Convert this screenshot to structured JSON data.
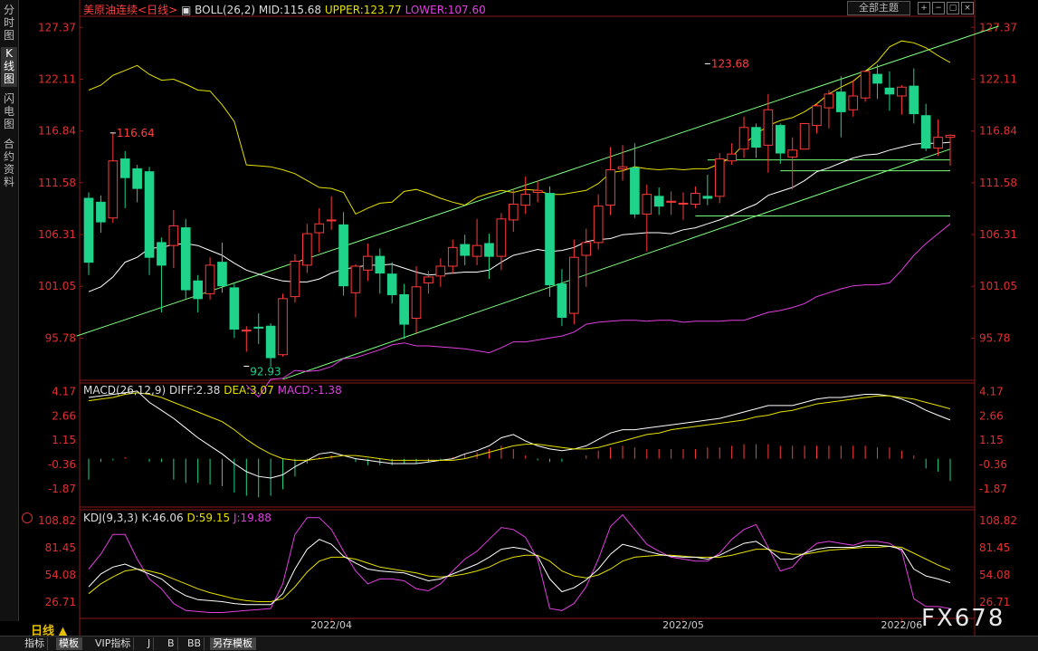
{
  "sidebar": {
    "tabs": [
      {
        "label": "分时图",
        "active": false
      },
      {
        "label": "K线图",
        "active": true
      },
      {
        "label": "闪电图",
        "active": false
      },
      {
        "label": "合约资料",
        "active": false
      }
    ]
  },
  "header": {
    "title": "美原油连续",
    "period_tag": "<日线>",
    "boll_label": "BOLL(26,2)",
    "mid": "MID:115.68",
    "upper": "UPPER:123.77",
    "lower": "LOWER:107.60",
    "theme_button": "全部主题"
  },
  "macd_header": {
    "label": "MACD(26,12,9)",
    "diff": "DIFF:2.38",
    "dea": "DEA:3.07",
    "macd": "MACD:-1.38"
  },
  "kdj_header": {
    "label": "KDJ(9,3,3)",
    "k": "K:46.06",
    "d": "D:59.15",
    "j": "J:19.88"
  },
  "period_label": "日线 ▲",
  "bottom_tabs": [
    "指标",
    "模板",
    "VIP指标",
    "J",
    "B",
    "BB",
    "另存模板"
  ],
  "watermark": "FX678",
  "colors": {
    "up": "#ff3b3b",
    "down": "#1fd38a",
    "mid": "#ffffff",
    "upper": "#e6e000",
    "lower": "#e040e0",
    "trend": "#7dff7d",
    "axis_text": "#e03030",
    "grid": "#8b1a1a"
  },
  "chart_data": {
    "type": "candlestick",
    "x_labels": [
      "2022/04",
      "2022/05",
      "2022/06"
    ],
    "price_axis": {
      "ticks": [
        127.37,
        122.11,
        116.84,
        111.58,
        106.31,
        101.05,
        95.78
      ],
      "range": [
        91.5,
        128.5
      ]
    },
    "annotations": [
      {
        "text": "116.64",
        "value": 116.64,
        "index": 2
      },
      {
        "text": "92.93",
        "value": 92.93,
        "index": 13
      },
      {
        "text": "123.68",
        "value": 123.68,
        "index": 51
      }
    ],
    "candles": [
      [
        110.0,
        103.5,
        102.2,
        110.6
      ],
      [
        109.6,
        107.6,
        106.5,
        110.3
      ],
      [
        108.0,
        113.8,
        107.5,
        116.6
      ],
      [
        114.0,
        112.1,
        109.0,
        114.8
      ],
      [
        113.0,
        111.0,
        109.6,
        113.4
      ],
      [
        112.7,
        104.0,
        102.2,
        113.2
      ],
      [
        105.5,
        103.2,
        98.4,
        106.0
      ],
      [
        105.2,
        107.2,
        102.9,
        108.8
      ],
      [
        107.0,
        100.7,
        99.8,
        107.9
      ],
      [
        101.6,
        99.8,
        98.4,
        102.2
      ],
      [
        100.3,
        103.2,
        99.7,
        104.0
      ],
      [
        103.5,
        101.1,
        100.4,
        105.5
      ],
      [
        100.9,
        96.7,
        95.8,
        101.3
      ],
      [
        96.5,
        96.6,
        94.4,
        97.0
      ],
      [
        96.9,
        96.8,
        95.2,
        98.3
      ],
      [
        97.0,
        93.8,
        92.9,
        97.3
      ],
      [
        94.1,
        99.8,
        93.9,
        100.3
      ],
      [
        100.0,
        103.6,
        99.4,
        104.3
      ],
      [
        103.2,
        106.4,
        102.4,
        107.4
      ],
      [
        106.5,
        107.4,
        104.5,
        109.0
      ],
      [
        107.7,
        107.8,
        106.8,
        110.2
      ],
      [
        107.3,
        101.1,
        100.1,
        108.6
      ],
      [
        100.4,
        103.1,
        97.9,
        103.3
      ],
      [
        102.7,
        104.1,
        101.6,
        105.4
      ],
      [
        104.1,
        102.4,
        100.3,
        104.9
      ],
      [
        102.3,
        100.2,
        99.3,
        103.5
      ],
      [
        100.2,
        97.2,
        95.7,
        101.3
      ],
      [
        97.8,
        101.0,
        96.3,
        103.1
      ],
      [
        101.4,
        102.0,
        100.3,
        102.6
      ],
      [
        102.1,
        103.1,
        101.0,
        103.9
      ],
      [
        103.1,
        105.0,
        102.3,
        105.8
      ],
      [
        105.3,
        104.2,
        103.2,
        106.3
      ],
      [
        104.1,
        105.2,
        103.2,
        107.9
      ],
      [
        105.4,
        104.1,
        101.8,
        106.4
      ],
      [
        104.1,
        107.9,
        102.7,
        108.5
      ],
      [
        107.8,
        109.4,
        106.6,
        111.0
      ],
      [
        109.3,
        110.4,
        108.4,
        112.2
      ],
      [
        110.6,
        110.8,
        109.6,
        111.8
      ],
      [
        110.5,
        101.2,
        100.0,
        111.2
      ],
      [
        101.3,
        97.9,
        97.0,
        102.8
      ],
      [
        98.3,
        104.0,
        97.2,
        105.8
      ],
      [
        104.2,
        105.5,
        101.0,
        106.9
      ],
      [
        105.5,
        109.2,
        104.8,
        110.4
      ],
      [
        109.3,
        112.9,
        108.3,
        115.2
      ],
      [
        113.0,
        113.2,
        111.8,
        115.4
      ],
      [
        113.1,
        108.4,
        108.0,
        115.6
      ],
      [
        108.4,
        110.4,
        104.6,
        111.4
      ],
      [
        110.2,
        109.2,
        108.3,
        111.1
      ],
      [
        109.6,
        109.7,
        108.3,
        110.7
      ],
      [
        109.5,
        109.5,
        107.8,
        110.6
      ],
      [
        109.4,
        110.5,
        109.0,
        111.2
      ],
      [
        110.2,
        110.0,
        109.3,
        112.4
      ],
      [
        110.2,
        114.0,
        109.5,
        114.6
      ],
      [
        113.8,
        114.5,
        113.4,
        115.6
      ],
      [
        115.0,
        117.2,
        114.1,
        118.3
      ],
      [
        117.2,
        115.2,
        114.1,
        117.6
      ],
      [
        115.4,
        119.0,
        112.6,
        120.6
      ],
      [
        117.4,
        114.6,
        113.5,
        117.6
      ],
      [
        114.2,
        114.9,
        110.9,
        116.2
      ],
      [
        115.0,
        117.6,
        115.0,
        117.6
      ],
      [
        117.4,
        119.4,
        116.6,
        119.6
      ],
      [
        119.2,
        120.6,
        117.1,
        121.0
      ],
      [
        120.8,
        118.8,
        116.2,
        122.4
      ],
      [
        119.0,
        120.4,
        118.3,
        122.0
      ],
      [
        120.2,
        122.9,
        119.8,
        123.0
      ],
      [
        122.6,
        121.7,
        120.1,
        123.6
      ],
      [
        121.2,
        120.6,
        118.9,
        122.9
      ],
      [
        120.4,
        121.3,
        118.5,
        121.5
      ],
      [
        121.4,
        118.6,
        117.6,
        123.2
      ],
      [
        118.4,
        115.1,
        114.8,
        119.6
      ],
      [
        115.1,
        116.2,
        114.3,
        118.0
      ],
      [
        116.2,
        116.4,
        113.3,
        116.5
      ]
    ],
    "upper_band": [
      121.0,
      121.5,
      122.5,
      123.0,
      123.5,
      122.6,
      122.0,
      122.1,
      121.6,
      121.0,
      120.9,
      119.5,
      117.8,
      113.4,
      113.3,
      113.2,
      112.9,
      112.5,
      111.8,
      111.1,
      111.0,
      110.6,
      108.4,
      109.0,
      109.5,
      109.6,
      110.7,
      110.9,
      110.5,
      110.0,
      109.6,
      109.3,
      110.1,
      110.5,
      110.8,
      110.6,
      110.9,
      110.8,
      110.4,
      110.4,
      110.6,
      110.8,
      111.5,
      112.6,
      112.8,
      113.2,
      113.0,
      112.9,
      113.0,
      112.9,
      113.0,
      113.0,
      113.5,
      114.2,
      115.5,
      116.5,
      117.4,
      117.9,
      118.2,
      118.8,
      119.6,
      120.6,
      121.3,
      121.9,
      122.9,
      123.9,
      125.4,
      126.0,
      125.8,
      125.3,
      124.5,
      123.8
    ],
    "mid_band": [
      100.5,
      101.0,
      102.0,
      103.5,
      104.0,
      104.9,
      105.0,
      105.3,
      105.4,
      105.2,
      104.7,
      104.2,
      103.4,
      102.7,
      102.3,
      101.9,
      101.6,
      101.5,
      101.5,
      101.8,
      102.4,
      102.8,
      103.0,
      103.2,
      103.2,
      103.3,
      102.9,
      102.5,
      102.2,
      102.3,
      102.4,
      102.5,
      102.5,
      102.7,
      103.5,
      104.2,
      104.5,
      104.8,
      104.6,
      104.7,
      105.0,
      105.6,
      105.8,
      105.9,
      106.3,
      106.4,
      106.5,
      106.5,
      106.4,
      106.8,
      107.0,
      107.4,
      107.8,
      108.3,
      108.9,
      109.4,
      110.3,
      110.7,
      111.1,
      111.8,
      112.7,
      113.1,
      113.6,
      114.1,
      114.4,
      114.5,
      114.9,
      115.2,
      115.5,
      115.6,
      115.6,
      115.7
    ],
    "lower_band": [
      null,
      null,
      null,
      null,
      null,
      null,
      null,
      null,
      null,
      null,
      null,
      null,
      null,
      91.0,
      89.8,
      91.6,
      91.7,
      92.5,
      92.4,
      92.5,
      92.9,
      93.7,
      93.8,
      94.2,
      94.6,
      95.1,
      95.3,
      95.0,
      95.0,
      94.9,
      94.8,
      94.7,
      94.5,
      94.3,
      94.8,
      95.4,
      95.4,
      95.6,
      95.8,
      96.0,
      96.4,
      97.2,
      97.4,
      97.5,
      97.6,
      97.6,
      97.5,
      97.6,
      97.6,
      97.4,
      97.5,
      97.5,
      97.5,
      97.6,
      97.6,
      98.0,
      98.4,
      98.6,
      98.9,
      99.3,
      100.0,
      100.4,
      100.8,
      101.1,
      101.2,
      101.2,
      101.4,
      102.7,
      104.2,
      105.4,
      106.4,
      107.4
    ],
    "trend_lines": [
      {
        "kind": "channel-upper",
        "from": [
          -1,
          96.0
        ],
        "to": [
          75,
          127.5
        ]
      },
      {
        "kind": "channel-lower",
        "from": [
          16,
          91.6
        ],
        "to": [
          71,
          115.0
        ]
      },
      {
        "kind": "support",
        "from": [
          51,
          113.9
        ],
        "to": [
          71,
          113.9
        ]
      },
      {
        "kind": "support",
        "from": [
          57,
          112.8
        ],
        "to": [
          71,
          112.8
        ]
      },
      {
        "kind": "support",
        "from": [
          50,
          108.2
        ],
        "to": [
          71,
          108.2
        ]
      }
    ],
    "macd": {
      "axis_ticks": [
        4.17,
        2.66,
        1.15,
        -0.36,
        -1.87
      ],
      "range": [
        -3.0,
        4.7
      ],
      "diff": [
        3.8,
        3.9,
        4.0,
        4.1,
        4.2,
        3.5,
        3.0,
        2.5,
        1.9,
        1.3,
        0.8,
        0.3,
        -0.3,
        -0.8,
        -1.1,
        -1.2,
        -1.0,
        -0.5,
        -0.1,
        0.3,
        0.4,
        0.2,
        0.0,
        -0.1,
        -0.2,
        -0.3,
        -0.3,
        -0.3,
        -0.2,
        -0.1,
        0.0,
        0.3,
        0.5,
        0.8,
        1.3,
        1.5,
        1.1,
        0.8,
        0.6,
        0.5,
        0.6,
        0.8,
        1.2,
        1.6,
        1.8,
        1.8,
        1.9,
        2.0,
        2.1,
        2.2,
        2.3,
        2.4,
        2.5,
        2.7,
        2.9,
        3.1,
        3.3,
        3.3,
        3.3,
        3.5,
        3.7,
        3.8,
        3.8,
        3.9,
        4.0,
        4.0,
        3.9,
        3.7,
        3.4,
        3.0,
        2.7,
        2.4
      ],
      "dea": [
        3.6,
        3.7,
        3.8,
        4.0,
        4.1,
        4.0,
        3.8,
        3.5,
        3.2,
        2.9,
        2.6,
        2.3,
        1.8,
        1.2,
        0.7,
        0.3,
        0.0,
        -0.1,
        -0.1,
        0.0,
        0.1,
        0.2,
        0.2,
        0.1,
        0.0,
        -0.1,
        -0.1,
        -0.1,
        -0.1,
        -0.1,
        -0.1,
        0.0,
        0.2,
        0.4,
        0.6,
        0.8,
        0.9,
        0.9,
        0.8,
        0.7,
        0.6,
        0.6,
        0.7,
        0.9,
        1.1,
        1.3,
        1.5,
        1.6,
        1.8,
        1.9,
        2.0,
        2.1,
        2.2,
        2.3,
        2.4,
        2.6,
        2.7,
        2.9,
        3.0,
        3.2,
        3.4,
        3.5,
        3.6,
        3.7,
        3.8,
        3.9,
        3.9,
        3.8,
        3.7,
        3.5,
        3.3,
        3.1
      ],
      "hist": [
        -1.3,
        -0.2,
        -0.1,
        0.1,
        0.0,
        -0.2,
        -0.2,
        -1.3,
        -1.5,
        -1.5,
        -1.6,
        -1.7,
        -2.1,
        -2.3,
        -2.4,
        -2.3,
        -1.9,
        -1.1,
        -0.3,
        0.1,
        0.2,
        0.0,
        -0.2,
        -0.4,
        -0.4,
        -0.4,
        -0.3,
        -0.3,
        -0.2,
        -0.1,
        0.1,
        0.3,
        0.4,
        0.6,
        0.8,
        0.6,
        0.2,
        -0.1,
        -0.2,
        -0.2,
        0.0,
        0.2,
        0.5,
        0.7,
        0.8,
        0.7,
        0.6,
        0.6,
        0.6,
        0.6,
        0.6,
        0.7,
        0.7,
        0.8,
        0.9,
        0.9,
        0.9,
        0.8,
        0.8,
        0.8,
        0.8,
        0.8,
        0.8,
        0.8,
        0.8,
        0.7,
        0.7,
        0.5,
        0.2,
        -0.6,
        -0.8,
        -1.38
      ]
    },
    "kdj": {
      "axis_ticks": [
        108.82,
        81.45,
        54.08,
        26.71
      ],
      "range": [
        10,
        120
      ],
      "k": [
        42,
        55,
        62,
        65,
        60,
        55,
        50,
        40,
        33,
        29,
        28,
        27,
        25,
        24,
        24,
        24,
        35,
        60,
        80,
        90,
        85,
        73,
        66,
        60,
        58,
        57,
        56,
        52,
        48,
        50,
        55,
        60,
        65,
        72,
        80,
        82,
        80,
        73,
        50,
        37,
        41,
        49,
        60,
        75,
        85,
        82,
        78,
        75,
        73,
        72,
        72,
        70,
        74,
        80,
        86,
        88,
        80,
        70,
        70,
        76,
        80,
        82,
        82,
        82,
        84,
        84,
        83,
        80,
        60,
        53,
        50,
        46
      ],
      "d": [
        35,
        45,
        52,
        58,
        60,
        58,
        55,
        50,
        45,
        40,
        36,
        33,
        30,
        28,
        27,
        27,
        30,
        42,
        57,
        68,
        72,
        72,
        70,
        66,
        62,
        60,
        58,
        56,
        53,
        52,
        53,
        55,
        58,
        62,
        68,
        72,
        74,
        74,
        68,
        58,
        53,
        51,
        54,
        60,
        68,
        72,
        73,
        74,
        74,
        73,
        72,
        72,
        72,
        74,
        77,
        80,
        80,
        77,
        75,
        75,
        77,
        79,
        80,
        81,
        82,
        82,
        83,
        82,
        76,
        70,
        64,
        59
      ],
      "j": [
        60,
        75,
        95,
        95,
        70,
        50,
        40,
        25,
        18,
        17,
        16,
        16,
        17,
        18,
        19,
        20,
        45,
        95,
        112,
        112,
        100,
        78,
        58,
        45,
        50,
        50,
        48,
        40,
        38,
        45,
        58,
        70,
        78,
        90,
        102,
        100,
        92,
        70,
        20,
        18,
        25,
        42,
        70,
        103,
        115,
        100,
        85,
        78,
        72,
        70,
        68,
        68,
        76,
        90,
        100,
        105,
        82,
        58,
        62,
        76,
        86,
        88,
        86,
        84,
        88,
        88,
        86,
        78,
        30,
        22,
        22,
        19.88
      ]
    }
  }
}
